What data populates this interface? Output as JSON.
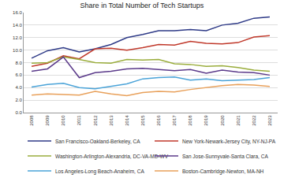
{
  "chart_data": {
    "type": "line",
    "title": "Share in Total Number of Tech Startups",
    "categories": [
      "2008",
      "2009",
      "2010",
      "2011",
      "2012",
      "2013",
      "2014",
      "2015",
      "2016",
      "2017",
      "2018",
      "2019",
      "2020",
      "2021",
      "2022",
      "2023"
    ],
    "series": [
      {
        "name": "San Francisco-Oakland-Berkeley, CA",
        "color": "#2e3a87",
        "values": [
          8.7,
          9.9,
          10.4,
          9.7,
          10.2,
          10.9,
          12.0,
          12.5,
          13.1,
          13.1,
          13.3,
          13.1,
          14.0,
          14.3,
          15.1,
          15.3
        ]
      },
      {
        "name": "New York-Newark-Jersey City, NY-NJ-PA",
        "color": "#c0392b",
        "values": [
          7.4,
          7.9,
          9.1,
          8.6,
          10.2,
          10.3,
          10.0,
          10.4,
          10.9,
          10.8,
          11.4,
          11.1,
          11.0,
          11.2,
          12.1,
          12.3
        ]
      },
      {
        "name": "Washington-Arlington-Alexandria, DC-VA-MD-WV",
        "color": "#9aad3c",
        "values": [
          7.9,
          8.0,
          8.9,
          8.5,
          8.0,
          7.9,
          8.5,
          8.4,
          8.5,
          7.8,
          7.7,
          7.4,
          7.5,
          7.2,
          6.8,
          6.6
        ]
      },
      {
        "name": "San Jose-Sunnyvale-Santa Clara, CA",
        "color": "#5b3a8a",
        "values": [
          6.6,
          7.0,
          8.9,
          5.6,
          6.4,
          6.6,
          7.0,
          7.1,
          6.9,
          6.7,
          6.9,
          6.3,
          6.8,
          6.5,
          6.4,
          6.0
        ]
      },
      {
        "name": "Los Angeles-Long Beach-Anaheim, CA",
        "color": "#4aa3d8",
        "values": [
          4.1,
          4.5,
          4.7,
          4.0,
          3.8,
          4.2,
          4.6,
          5.4,
          5.6,
          5.7,
          5.2,
          5.4,
          5.1,
          5.2,
          5.3,
          5.6
        ]
      },
      {
        "name": "Boston-Cambridge-Newton, MA-NH",
        "color": "#e8a05a",
        "values": [
          2.8,
          3.0,
          2.9,
          2.8,
          3.4,
          3.0,
          2.7,
          3.2,
          3.4,
          3.3,
          3.7,
          4.0,
          4.3,
          4.5,
          4.4,
          4.2
        ]
      }
    ],
    "ylim": [
      0,
      16
    ],
    "yticks": [
      {
        "value": 0,
        "label": "0.0"
      },
      {
        "value": 2,
        "label": "2.0"
      },
      {
        "value": 4,
        "label": "4.0"
      },
      {
        "value": 6,
        "label": "6.0"
      },
      {
        "value": 8,
        "label": "8.0"
      },
      {
        "value": 10,
        "label": "10.0"
      },
      {
        "value": 12,
        "label": "12.0"
      },
      {
        "value": 14,
        "label": "14.0"
      },
      {
        "value": 16,
        "label": "16.0"
      }
    ],
    "grid": true,
    "legend": "bottom"
  }
}
